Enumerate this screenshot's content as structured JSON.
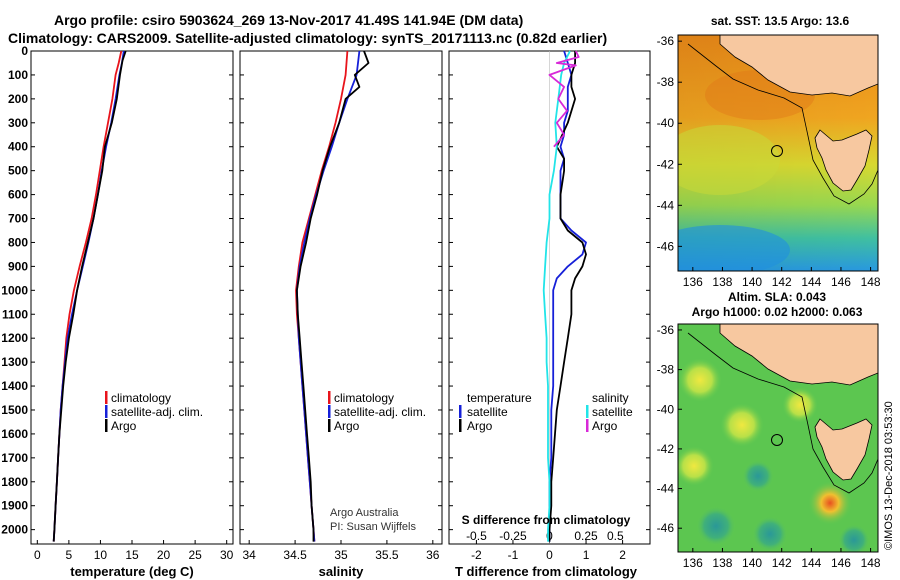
{
  "header": {
    "line1": "Argo profile: csiro 5903624_269 13-Nov-2017 41.49S 141.94E (DM data)",
    "line2": "Climatology: CARS2009. Satellite-adjusted climatology: synTS_20171113.nc (0.82d earlier)"
  },
  "colors": {
    "climatology": "#e8141c",
    "satellite": "#1620d8",
    "argo": "#000000",
    "temp_satellite_diff": "#1620d8",
    "sal_satellite_diff": "#22e4e8",
    "sal_argo_diff": "#d829d8",
    "land": "#f7c8a0"
  },
  "chart_data": [
    {
      "type": "line",
      "xlabel": "temperature (deg C)",
      "ylabel": "",
      "xlim": [
        -1,
        31
      ],
      "ylim": [
        2060,
        0
      ],
      "xticks": [
        "0",
        "5",
        "10",
        "15",
        "20",
        "25",
        "30"
      ],
      "yticks": [
        "0",
        "100",
        "200",
        "300",
        "400",
        "500",
        "600",
        "700",
        "800",
        "900",
        "1000",
        "1100",
        "1200",
        "1300",
        "1400",
        "1500",
        "1600",
        "1700",
        "1800",
        "1900",
        "2000"
      ],
      "legend": [
        "climatology",
        "satellite-adj. clim.",
        "Argo"
      ],
      "legend_position": "lower-right",
      "series": [
        {
          "name": "climatology",
          "points": [
            [
              13.3,
              0
            ],
            [
              12.9,
              50
            ],
            [
              12.4,
              100
            ],
            [
              11.9,
              200
            ],
            [
              11.2,
              300
            ],
            [
              10.5,
              400
            ],
            [
              9.9,
              500
            ],
            [
              9.3,
              600
            ],
            [
              8.6,
              700
            ],
            [
              7.7,
              800
            ],
            [
              6.7,
              900
            ],
            [
              5.8,
              1000
            ],
            [
              5.1,
              1100
            ],
            [
              4.6,
              1200
            ],
            [
              4.3,
              1300
            ],
            [
              4.0,
              1400
            ],
            [
              3.7,
              1500
            ],
            [
              3.5,
              1600
            ],
            [
              3.3,
              1700
            ],
            [
              3.1,
              1800
            ],
            [
              2.9,
              1900
            ],
            [
              2.7,
              2000
            ],
            [
              2.6,
              2050
            ]
          ]
        },
        {
          "name": "satellite-adj. clim.",
          "points": [
            [
              13.7,
              0
            ],
            [
              13.4,
              50
            ],
            [
              13.0,
              100
            ],
            [
              12.4,
              200
            ],
            [
              11.7,
              300
            ],
            [
              10.9,
              400
            ],
            [
              10.2,
              500
            ],
            [
              9.6,
              600
            ],
            [
              8.9,
              700
            ],
            [
              8.1,
              800
            ],
            [
              7.2,
              900
            ],
            [
              6.3,
              1000
            ],
            [
              5.5,
              1100
            ],
            [
              4.8,
              1200
            ],
            [
              4.4,
              1300
            ],
            [
              4.0,
              1400
            ],
            [
              3.7,
              1500
            ],
            [
              3.5,
              1600
            ],
            [
              3.3,
              1700
            ],
            [
              3.1,
              1800
            ],
            [
              2.9,
              1900
            ],
            [
              2.7,
              2000
            ],
            [
              2.6,
              2050
            ]
          ]
        },
        {
          "name": "Argo",
          "points": [
            [
              14.0,
              0
            ],
            [
              13.5,
              40
            ],
            [
              13.1,
              100
            ],
            [
              12.6,
              200
            ],
            [
              11.8,
              300
            ],
            [
              10.7,
              400
            ],
            [
              10.3,
              500
            ],
            [
              9.6,
              600
            ],
            [
              8.9,
              700
            ],
            [
              8.0,
              800
            ],
            [
              7.1,
              900
            ],
            [
              6.3,
              1000
            ],
            [
              5.7,
              1100
            ],
            [
              5.0,
              1200
            ],
            [
              4.5,
              1300
            ],
            [
              4.1,
              1400
            ],
            [
              3.8,
              1500
            ],
            [
              3.5,
              1600
            ],
            [
              3.3,
              1700
            ],
            [
              3.1,
              1800
            ],
            [
              2.9,
              1900
            ],
            [
              2.7,
              2000
            ],
            [
              2.6,
              2050
            ]
          ]
        }
      ]
    },
    {
      "type": "line",
      "xlabel": "salinity",
      "xlim": [
        33.9,
        36.1
      ],
      "ylim": [
        2060,
        0
      ],
      "xticks": [
        "34",
        "34.5",
        "35",
        "35.5",
        "36"
      ],
      "legend": [
        "climatology",
        "satellite-adj. clim.",
        "Argo"
      ],
      "legend_position": "lower-right",
      "annotation": [
        "Argo Australia",
        "PI: Susan Wijffels"
      ],
      "series": [
        {
          "name": "climatology",
          "points": [
            [
              35.07,
              0
            ],
            [
              35.05,
              100
            ],
            [
              35.0,
              200
            ],
            [
              34.94,
              300
            ],
            [
              34.87,
              400
            ],
            [
              34.79,
              500
            ],
            [
              34.72,
              600
            ],
            [
              34.65,
              700
            ],
            [
              34.58,
              800
            ],
            [
              34.54,
              900
            ],
            [
              34.51,
              1000
            ],
            [
              34.52,
              1100
            ],
            [
              34.54,
              1200
            ],
            [
              34.56,
              1300
            ],
            [
              34.58,
              1400
            ],
            [
              34.6,
              1500
            ],
            [
              34.62,
              1600
            ],
            [
              34.64,
              1700
            ],
            [
              34.66,
              1800
            ],
            [
              34.68,
              1900
            ],
            [
              34.7,
              2000
            ],
            [
              34.71,
              2050
            ]
          ]
        },
        {
          "name": "satellite-adj. clim.",
          "points": [
            [
              35.2,
              0
            ],
            [
              35.17,
              100
            ],
            [
              35.07,
              200
            ],
            [
              34.98,
              300
            ],
            [
              34.9,
              400
            ],
            [
              34.81,
              500
            ],
            [
              34.73,
              600
            ],
            [
              34.66,
              700
            ],
            [
              34.6,
              800
            ],
            [
              34.55,
              900
            ],
            [
              34.52,
              1000
            ],
            [
              34.53,
              1100
            ],
            [
              34.54,
              1200
            ],
            [
              34.56,
              1300
            ],
            [
              34.58,
              1400
            ],
            [
              34.6,
              1500
            ],
            [
              34.62,
              1600
            ],
            [
              34.64,
              1700
            ],
            [
              34.66,
              1800
            ],
            [
              34.68,
              1900
            ],
            [
              34.7,
              2000
            ],
            [
              34.71,
              2050
            ]
          ]
        },
        {
          "name": "Argo",
          "points": [
            [
              35.25,
              0
            ],
            [
              35.3,
              50
            ],
            [
              35.15,
              100
            ],
            [
              35.2,
              150
            ],
            [
              35.05,
              200
            ],
            [
              34.98,
              300
            ],
            [
              34.93,
              350
            ],
            [
              34.88,
              400
            ],
            [
              34.8,
              500
            ],
            [
              34.74,
              600
            ],
            [
              34.67,
              700
            ],
            [
              34.62,
              800
            ],
            [
              34.56,
              900
            ],
            [
              34.52,
              1000
            ],
            [
              34.53,
              1100
            ],
            [
              34.55,
              1200
            ],
            [
              34.57,
              1300
            ],
            [
              34.59,
              1400
            ],
            [
              34.61,
              1500
            ],
            [
              34.63,
              1600
            ],
            [
              34.65,
              1700
            ],
            [
              34.67,
              1800
            ],
            [
              34.68,
              1900
            ],
            [
              34.7,
              2000
            ],
            [
              34.7,
              2050
            ]
          ]
        }
      ]
    },
    {
      "type": "line",
      "xlabel": "T difference from climatology",
      "xlim": [
        -2.75,
        2.75
      ],
      "ylim": [
        2060,
        0
      ],
      "xticks": [
        "-2",
        "-1",
        "0",
        "1",
        "2"
      ],
      "top_axis_label": "S difference from climatology",
      "top_xticks": [
        "-0.5",
        "-0.25",
        "0",
        "0.25",
        "0.5"
      ],
      "legend_temperature_title": "temperature",
      "legend_salinity_title": "salinity",
      "legend": [
        "satellite",
        "Argo",
        "satellite",
        "Argo"
      ],
      "series": [
        {
          "name": "temperature satellite",
          "points": [
            [
              0.4,
              0
            ],
            [
              0.5,
              50
            ],
            [
              0.6,
              100
            ],
            [
              0.5,
              150
            ],
            [
              0.5,
              200
            ],
            [
              0.5,
              250
            ],
            [
              0.4,
              300
            ],
            [
              0.4,
              350
            ],
            [
              0.3,
              400
            ],
            [
              0.4,
              450
            ],
            [
              0.3,
              500
            ],
            [
              0.3,
              600
            ],
            [
              0.3,
              700
            ],
            [
              0.6,
              750
            ],
            [
              1.0,
              800
            ],
            [
              0.9,
              850
            ],
            [
              0.5,
              900
            ],
            [
              0.2,
              950
            ],
            [
              0.1,
              1000
            ],
            [
              0.1,
              1100
            ],
            [
              0.1,
              1200
            ],
            [
              0.1,
              1300
            ],
            [
              0.1,
              1400
            ],
            [
              0.05,
              1500
            ],
            [
              0.05,
              1600
            ],
            [
              0.05,
              1700
            ],
            [
              0.0,
              1800
            ],
            [
              0.0,
              1900
            ],
            [
              0.0,
              2000
            ],
            [
              0.0,
              2050
            ]
          ]
        },
        {
          "name": "temperature Argo",
          "points": [
            [
              0.7,
              0
            ],
            [
              0.7,
              50
            ],
            [
              0.6,
              100
            ],
            [
              0.6,
              150
            ],
            [
              0.7,
              200
            ],
            [
              0.5,
              300
            ],
            [
              0.2,
              400
            ],
            [
              0.4,
              450
            ],
            [
              0.4,
              500
            ],
            [
              0.3,
              600
            ],
            [
              0.3,
              700
            ],
            [
              0.5,
              750
            ],
            [
              0.9,
              800
            ],
            [
              1.0,
              850
            ],
            [
              0.9,
              900
            ],
            [
              0.7,
              950
            ],
            [
              0.6,
              1000
            ],
            [
              0.6,
              1100
            ],
            [
              0.5,
              1200
            ],
            [
              0.4,
              1300
            ],
            [
              0.3,
              1400
            ],
            [
              0.2,
              1500
            ],
            [
              0.15,
              1600
            ],
            [
              0.1,
              1700
            ],
            [
              0.05,
              1800
            ],
            [
              0.05,
              1900
            ],
            [
              0.0,
              2000
            ],
            [
              0.0,
              2050
            ]
          ]
        },
        {
          "name": "salinity satellite",
          "points": [
            [
              0.14,
              0
            ],
            [
              0.1,
              50
            ],
            [
              0.08,
              100
            ],
            [
              0.06,
              200
            ],
            [
              0.04,
              300
            ],
            [
              0.05,
              400
            ],
            [
              0.03,
              500
            ],
            [
              0.0,
              600
            ],
            [
              0.0,
              700
            ],
            [
              -0.02,
              800
            ],
            [
              -0.03,
              900
            ],
            [
              -0.04,
              1000
            ],
            [
              -0.03,
              1100
            ],
            [
              -0.02,
              1200
            ],
            [
              -0.02,
              1300
            ],
            [
              -0.01,
              1400
            ],
            [
              -0.01,
              1500
            ],
            [
              -0.01,
              1600
            ],
            [
              -0.01,
              1700
            ],
            [
              0.0,
              1800
            ],
            [
              0.0,
              1900
            ],
            [
              -0.01,
              2000
            ],
            [
              -0.01,
              2050
            ]
          ]
        },
        {
          "name": "salinity Argo",
          "points": [
            [
              0.18,
              0
            ],
            [
              0.2,
              25
            ],
            [
              0.05,
              50
            ],
            [
              0.18,
              60
            ],
            [
              0.0,
              100
            ],
            [
              0.1,
              150
            ],
            [
              0.06,
              200
            ],
            [
              0.12,
              250
            ],
            [
              0.05,
              300
            ],
            [
              0.1,
              350
            ],
            [
              0.03,
              400
            ]
          ]
        }
      ]
    },
    {
      "type": "heatmap",
      "title": "sat. SST: 13.5 Argo: 13.6",
      "xticks": [
        "136",
        "138",
        "140",
        "142",
        "144",
        "146",
        "148"
      ],
      "yticks": [
        "-36",
        "-38",
        "-40",
        "-42",
        "-44",
        "-46"
      ],
      "xlim": [
        135,
        148.5
      ],
      "ylim": [
        -47.2,
        -35.7
      ],
      "marker": [
        141.94,
        -41.49
      ]
    },
    {
      "type": "heatmap",
      "title": "Altim. SLA: 0.043",
      "subtitle": "Argo h1000: 0.02 h2000: 0.063",
      "xticks": [
        "136",
        "138",
        "140",
        "142",
        "144",
        "146",
        "148"
      ],
      "yticks": [
        "-36",
        "-38",
        "-40",
        "-42",
        "-44",
        "-46"
      ],
      "xlim": [
        135,
        148.5
      ],
      "ylim": [
        -47.2,
        -35.7
      ],
      "marker": [
        141.94,
        -41.49
      ]
    }
  ],
  "footer_stamp": "©IMOS 13-Dec-2018 03:53:30"
}
